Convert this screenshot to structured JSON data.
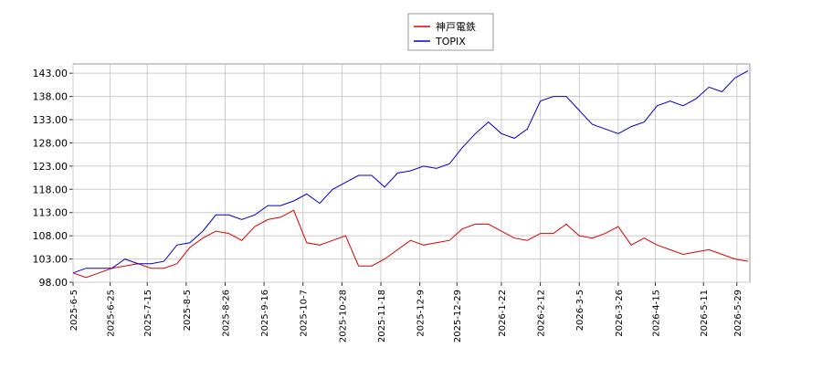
{
  "chart_data": {
    "type": "line",
    "x": [
      "2025-6-5",
      "2025-6-12",
      "2025-6-19",
      "2025-6-26",
      "2025-7-3",
      "2025-7-10",
      "2025-7-17",
      "2025-7-24",
      "2025-7-31",
      "2025-8-7",
      "2025-8-14",
      "2025-8-21",
      "2025-8-28",
      "2025-9-4",
      "2025-9-11",
      "2025-9-18",
      "2025-9-25",
      "2025-10-2",
      "2025-10-9",
      "2025-10-16",
      "2025-10-23",
      "2025-10-30",
      "2025-11-6",
      "2025-11-13",
      "2025-11-20",
      "2025-11-27",
      "2025-12-4",
      "2025-12-11",
      "2025-12-18",
      "2025-12-25",
      "2026-1-1",
      "2026-1-8",
      "2026-1-15",
      "2026-1-22",
      "2026-1-29",
      "2026-2-5",
      "2026-2-12",
      "2026-2-19",
      "2026-2-26",
      "2026-3-5",
      "2026-3-12",
      "2026-3-19",
      "2026-3-26",
      "2026-4-2",
      "2026-4-9",
      "2026-4-16",
      "2026-4-23",
      "2026-4-30",
      "2026-5-7",
      "2026-5-14",
      "2026-5-21",
      "2026-5-28",
      "2026-6-4"
    ],
    "series": [
      {
        "name": "神戸電鉄",
        "color": "#dd0000",
        "values": [
          100,
          99,
          100,
          101,
          101.5,
          102,
          101,
          101,
          102,
          105.5,
          107.5,
          109,
          108.5,
          107,
          110,
          111.5,
          112,
          113.5,
          106.5,
          106,
          107,
          108,
          101.5,
          101.5,
          103,
          105,
          107,
          106,
          106.5,
          107,
          109.5,
          110.5,
          110.5,
          109,
          107.5,
          107,
          108.5,
          108.5,
          110.5,
          108,
          107.5,
          108.5,
          110,
          106,
          107.5,
          106,
          105,
          104,
          104.5,
          105,
          104,
          103,
          102.5
        ]
      },
      {
        "name": "TOPIX",
        "color": "#0000cc",
        "values": [
          100,
          101,
          101,
          101,
          103,
          102,
          102,
          102.5,
          106,
          106.5,
          109,
          112.5,
          112.5,
          111.5,
          112.5,
          114.5,
          114.5,
          115.5,
          117,
          115,
          118,
          119.5,
          121,
          121,
          118.5,
          121.5,
          122,
          123,
          122.5,
          123.5,
          127,
          130,
          132.5,
          130,
          129,
          131,
          137,
          138,
          138,
          135,
          132,
          131,
          130,
          131.5,
          132.5,
          136,
          137,
          136,
          137.5,
          140,
          139,
          142,
          143.5
        ]
      }
    ],
    "xlim": [
      "2025-6-5",
      "2026-6-5"
    ],
    "xticks": [
      "2025-6-5",
      "2025-6-25",
      "2025-7-15",
      "2025-8-5",
      "2025-8-26",
      "2025-9-16",
      "2025-10-7",
      "2025-10-28",
      "2025-11-18",
      "2025-12-9",
      "2025-12-29",
      "2026-1-22",
      "2026-2-12",
      "2026-3-5",
      "2026-3-26",
      "2026-4-15",
      "2026-5-11",
      "2026-5-29"
    ],
    "ylim": [
      98,
      145
    ],
    "yticks": [
      {
        "value": 98,
        "label": "98.00"
      },
      {
        "value": 103,
        "label": "103.00"
      },
      {
        "value": 108,
        "label": "108.00"
      },
      {
        "value": 113,
        "label": "113.00"
      },
      {
        "value": 118,
        "label": "118.00"
      },
      {
        "value": 123,
        "label": "123.00"
      },
      {
        "value": 128,
        "label": "128.00"
      },
      {
        "value": 133,
        "label": "133.00"
      },
      {
        "value": 138,
        "label": "138.00"
      },
      {
        "value": 143,
        "label": "143.00"
      }
    ],
    "grid": true,
    "legend": "top"
  }
}
